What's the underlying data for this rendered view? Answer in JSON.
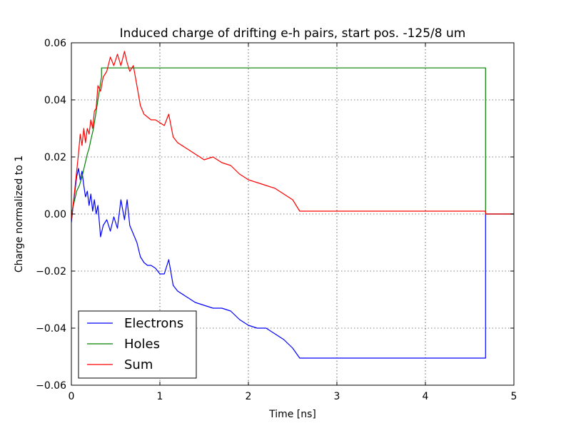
{
  "chart_data": {
    "type": "line",
    "title": "Induced charge of drifting e-h pairs, start pos. -125/8 um",
    "xlabel": "Time [ns]",
    "ylabel": "Charge normalized to 1",
    "xlim": [
      0,
      5
    ],
    "ylim": [
      -0.06,
      0.06
    ],
    "xticks": [
      0,
      1,
      2,
      3,
      4,
      5
    ],
    "xtick_labels": [
      "0",
      "1",
      "2",
      "3",
      "4",
      "5"
    ],
    "yticks": [
      -0.06,
      -0.04,
      -0.02,
      0.0,
      0.02,
      0.04,
      0.06
    ],
    "ytick_labels": [
      "−0.06",
      "−0.04",
      "−0.02",
      "0.00",
      "0.02",
      "0.04",
      "0.06"
    ],
    "grid": true,
    "legend_position": "lower-left",
    "series": [
      {
        "name": "Electrons",
        "color": "#0000ff",
        "x": [
          0,
          0.02,
          0.04,
          0.06,
          0.08,
          0.1,
          0.12,
          0.14,
          0.16,
          0.18,
          0.2,
          0.22,
          0.24,
          0.26,
          0.28,
          0.3,
          0.33,
          0.36,
          0.4,
          0.44,
          0.48,
          0.52,
          0.56,
          0.6,
          0.63,
          0.66,
          0.7,
          0.74,
          0.78,
          0.82,
          0.86,
          0.9,
          0.95,
          1.0,
          1.05,
          1.1,
          1.15,
          1.2,
          1.3,
          1.4,
          1.5,
          1.6,
          1.7,
          1.8,
          1.9,
          2.0,
          2.1,
          2.2,
          2.3,
          2.4,
          2.5,
          2.58,
          2.6,
          4.68,
          4.68,
          5.0
        ],
        "y": [
          -0.003,
          0.003,
          0.008,
          0.013,
          0.016,
          0.012,
          0.015,
          0.01,
          0.006,
          0.008,
          0.003,
          0.007,
          0.001,
          0.005,
          0.0,
          0.003,
          -0.008,
          -0.004,
          -0.002,
          -0.006,
          -0.001,
          -0.005,
          0.005,
          -0.002,
          0.005,
          -0.004,
          -0.007,
          -0.01,
          -0.015,
          -0.017,
          -0.018,
          -0.018,
          -0.019,
          -0.021,
          -0.021,
          -0.016,
          -0.025,
          -0.027,
          -0.029,
          -0.031,
          -0.032,
          -0.033,
          -0.033,
          -0.034,
          -0.037,
          -0.039,
          -0.04,
          -0.04,
          -0.042,
          -0.044,
          -0.047,
          -0.0505,
          -0.0505,
          -0.0505,
          0.0,
          0.0
        ]
      },
      {
        "name": "Holes",
        "color": "#008000",
        "x": [
          0,
          0.03,
          0.06,
          0.09,
          0.12,
          0.15,
          0.18,
          0.2,
          0.22,
          0.25,
          0.27,
          0.3,
          0.34,
          0.34,
          4.68,
          4.68,
          5.0
        ],
        "y": [
          0.0,
          0.004,
          0.008,
          0.01,
          0.013,
          0.017,
          0.021,
          0.023,
          0.026,
          0.03,
          0.034,
          0.04,
          0.048,
          0.0512,
          0.0512,
          0.0,
          0.0
        ]
      },
      {
        "name": "Sum",
        "color": "#ff0000",
        "x": [
          0,
          0.03,
          0.06,
          0.08,
          0.1,
          0.12,
          0.14,
          0.16,
          0.18,
          0.2,
          0.22,
          0.24,
          0.26,
          0.28,
          0.3,
          0.33,
          0.36,
          0.4,
          0.44,
          0.48,
          0.52,
          0.56,
          0.6,
          0.63,
          0.66,
          0.7,
          0.74,
          0.78,
          0.82,
          0.86,
          0.9,
          0.95,
          1.0,
          1.05,
          1.1,
          1.15,
          1.2,
          1.3,
          1.4,
          1.5,
          1.6,
          1.7,
          1.8,
          1.9,
          2.0,
          2.1,
          2.2,
          2.3,
          2.4,
          2.5,
          2.58,
          2.6,
          4.68,
          4.68,
          5.0
        ],
        "y": [
          -0.002,
          0.006,
          0.015,
          0.021,
          0.028,
          0.024,
          0.03,
          0.025,
          0.03,
          0.028,
          0.033,
          0.03,
          0.036,
          0.037,
          0.045,
          0.043,
          0.048,
          0.05,
          0.055,
          0.052,
          0.056,
          0.052,
          0.057,
          0.053,
          0.05,
          0.052,
          0.045,
          0.038,
          0.035,
          0.034,
          0.033,
          0.033,
          0.032,
          0.031,
          0.035,
          0.027,
          0.025,
          0.023,
          0.021,
          0.019,
          0.02,
          0.018,
          0.017,
          0.014,
          0.012,
          0.011,
          0.01,
          0.009,
          0.007,
          0.005,
          0.001,
          0.001,
          0.001,
          0.0,
          0.0
        ]
      }
    ]
  }
}
